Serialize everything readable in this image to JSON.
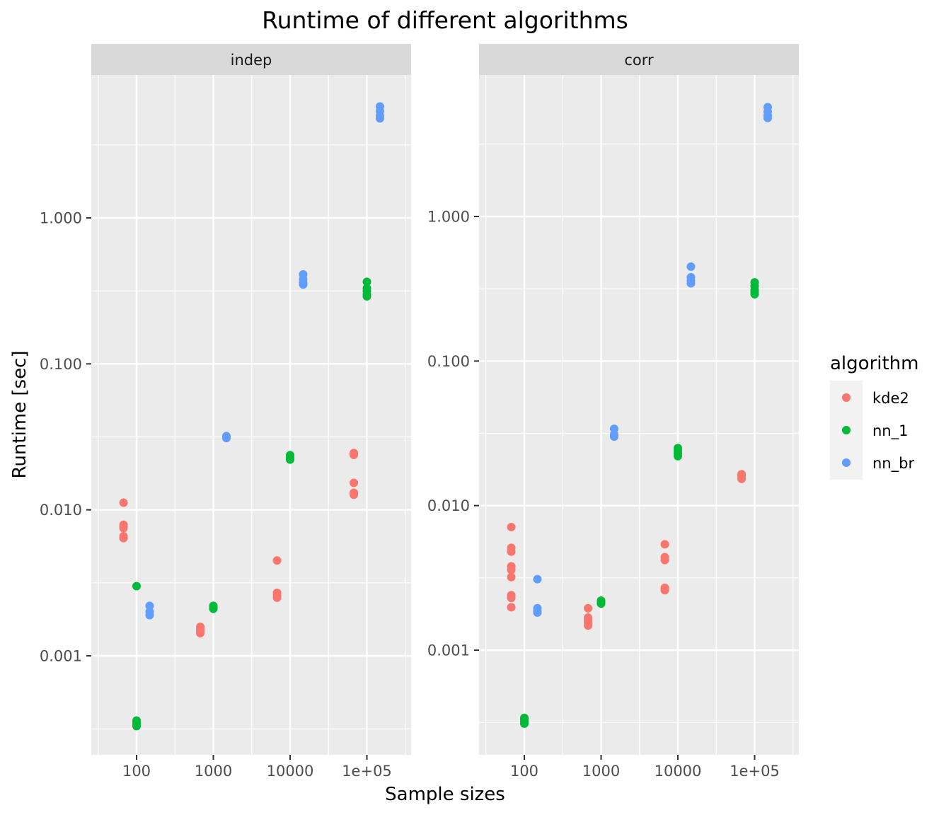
{
  "chart_data": {
    "type": "scatter",
    "title": "Runtime of different algorithms",
    "xlabel": "Sample sizes",
    "ylabel": "Runtime [sec]",
    "x_scale": "log10",
    "y_scale": "log10",
    "x_ticks": [
      100,
      1000,
      10000,
      100000
    ],
    "x_tick_labels": [
      "100",
      "1000",
      "10000",
      "1e+05"
    ],
    "y_ticks": [
      0.001,
      0.01,
      0.1,
      1
    ],
    "y_tick_labels": [
      "0.001",
      "0.010",
      "0.100",
      "1.000"
    ],
    "grid": true,
    "legend": {
      "title": "algorithm",
      "position": "right",
      "entries": [
        "kde2",
        "nn_1",
        "nn_br"
      ]
    },
    "colors": {
      "kde2": "#F8766D",
      "nn_1": "#00BA38",
      "nn_br": "#619CFF"
    },
    "panels": [
      {
        "strip": "indep",
        "series": [
          {
            "name": "kde2",
            "points": [
              {
                "x": 100,
                "y": 0.0112
              },
              {
                "x": 100,
                "y": 0.0079
              },
              {
                "x": 100,
                "y": 0.0077
              },
              {
                "x": 100,
                "y": 0.0075
              },
              {
                "x": 100,
                "y": 0.0066
              },
              {
                "x": 100,
                "y": 0.0064
              },
              {
                "x": 1000,
                "y": 0.00158
              },
              {
                "x": 1000,
                "y": 0.00153
              },
              {
                "x": 1000,
                "y": 0.00149
              },
              {
                "x": 1000,
                "y": 0.00146
              },
              {
                "x": 1000,
                "y": 0.00143
              },
              {
                "x": 10000,
                "y": 0.0045
              },
              {
                "x": 10000,
                "y": 0.0027
              },
              {
                "x": 10000,
                "y": 0.0026
              },
              {
                "x": 10000,
                "y": 0.0025
              },
              {
                "x": 100000,
                "y": 0.0245
              },
              {
                "x": 100000,
                "y": 0.0238
              },
              {
                "x": 100000,
                "y": 0.0153
              },
              {
                "x": 100000,
                "y": 0.0131
              },
              {
                "x": 100000,
                "y": 0.0127
              }
            ]
          },
          {
            "name": "nn_1",
            "points": [
              {
                "x": 100,
                "y": 0.003
              },
              {
                "x": 100,
                "y": 0.00036
              },
              {
                "x": 100,
                "y": 0.00035
              },
              {
                "x": 100,
                "y": 0.00034
              },
              {
                "x": 100,
                "y": 0.00033
              },
              {
                "x": 1000,
                "y": 0.0022
              },
              {
                "x": 1000,
                "y": 0.00215
              },
              {
                "x": 1000,
                "y": 0.0021
              },
              {
                "x": 10000,
                "y": 0.0237
              },
              {
                "x": 10000,
                "y": 0.0228
              },
              {
                "x": 10000,
                "y": 0.0221
              },
              {
                "x": 100000,
                "y": 0.365
              },
              {
                "x": 100000,
                "y": 0.33
              },
              {
                "x": 100000,
                "y": 0.315
              },
              {
                "x": 100000,
                "y": 0.3
              },
              {
                "x": 100000,
                "y": 0.29
              }
            ]
          },
          {
            "name": "nn_br",
            "points": [
              {
                "x": 100,
                "y": 0.0022
              },
              {
                "x": 100,
                "y": 0.002
              },
              {
                "x": 100,
                "y": 0.0019
              },
              {
                "x": 1000,
                "y": 0.032
              },
              {
                "x": 1000,
                "y": 0.031
              },
              {
                "x": 10000,
                "y": 0.41
              },
              {
                "x": 10000,
                "y": 0.38
              },
              {
                "x": 10000,
                "y": 0.36
              },
              {
                "x": 10000,
                "y": 0.35
              },
              {
                "x": 100000,
                "y": 5.8
              },
              {
                "x": 100000,
                "y": 5.4
              },
              {
                "x": 100000,
                "y": 5.0
              },
              {
                "x": 100000,
                "y": 4.8
              }
            ]
          }
        ]
      },
      {
        "strip": "corr",
        "series": [
          {
            "name": "kde2",
            "points": [
              {
                "x": 100,
                "y": 0.0071
              },
              {
                "x": 100,
                "y": 0.0051
              },
              {
                "x": 100,
                "y": 0.0048
              },
              {
                "x": 100,
                "y": 0.0038
              },
              {
                "x": 100,
                "y": 0.0036
              },
              {
                "x": 100,
                "y": 0.0032
              },
              {
                "x": 100,
                "y": 0.0024
              },
              {
                "x": 100,
                "y": 0.0023
              },
              {
                "x": 100,
                "y": 0.00198
              },
              {
                "x": 1000,
                "y": 0.00195
              },
              {
                "x": 1000,
                "y": 0.00168
              },
              {
                "x": 1000,
                "y": 0.00162
              },
              {
                "x": 1000,
                "y": 0.00155
              },
              {
                "x": 1000,
                "y": 0.00148
              },
              {
                "x": 10000,
                "y": 0.0054
              },
              {
                "x": 10000,
                "y": 0.0044
              },
              {
                "x": 10000,
                "y": 0.0042
              },
              {
                "x": 10000,
                "y": 0.0027
              },
              {
                "x": 10000,
                "y": 0.0026
              },
              {
                "x": 100000,
                "y": 0.0165
              },
              {
                "x": 100000,
                "y": 0.016
              },
              {
                "x": 100000,
                "y": 0.0153
              }
            ]
          },
          {
            "name": "nn_1",
            "points": [
              {
                "x": 100,
                "y": 0.00034
              },
              {
                "x": 100,
                "y": 0.00033
              },
              {
                "x": 100,
                "y": 0.00032
              },
              {
                "x": 100,
                "y": 0.00031
              },
              {
                "x": 1000,
                "y": 0.0022
              },
              {
                "x": 1000,
                "y": 0.00215
              },
              {
                "x": 1000,
                "y": 0.0021
              },
              {
                "x": 10000,
                "y": 0.025
              },
              {
                "x": 10000,
                "y": 0.024
              },
              {
                "x": 10000,
                "y": 0.023
              },
              {
                "x": 10000,
                "y": 0.022
              },
              {
                "x": 100000,
                "y": 0.35
              },
              {
                "x": 100000,
                "y": 0.33
              },
              {
                "x": 100000,
                "y": 0.31
              },
              {
                "x": 100000,
                "y": 0.3
              },
              {
                "x": 100000,
                "y": 0.29
              }
            ]
          },
          {
            "name": "nn_br",
            "points": [
              {
                "x": 100,
                "y": 0.0031
              },
              {
                "x": 100,
                "y": 0.00195
              },
              {
                "x": 100,
                "y": 0.00188
              },
              {
                "x": 100,
                "y": 0.00182
              },
              {
                "x": 1000,
                "y": 0.034
              },
              {
                "x": 1000,
                "y": 0.031
              },
              {
                "x": 1000,
                "y": 0.03
              },
              {
                "x": 10000,
                "y": 0.45
              },
              {
                "x": 10000,
                "y": 0.38
              },
              {
                "x": 10000,
                "y": 0.36
              },
              {
                "x": 10000,
                "y": 0.345
              },
              {
                "x": 100000,
                "y": 5.7
              },
              {
                "x": 100000,
                "y": 5.3
              },
              {
                "x": 100000,
                "y": 5.0
              },
              {
                "x": 100000,
                "y": 4.8
              }
            ]
          }
        ]
      }
    ]
  }
}
